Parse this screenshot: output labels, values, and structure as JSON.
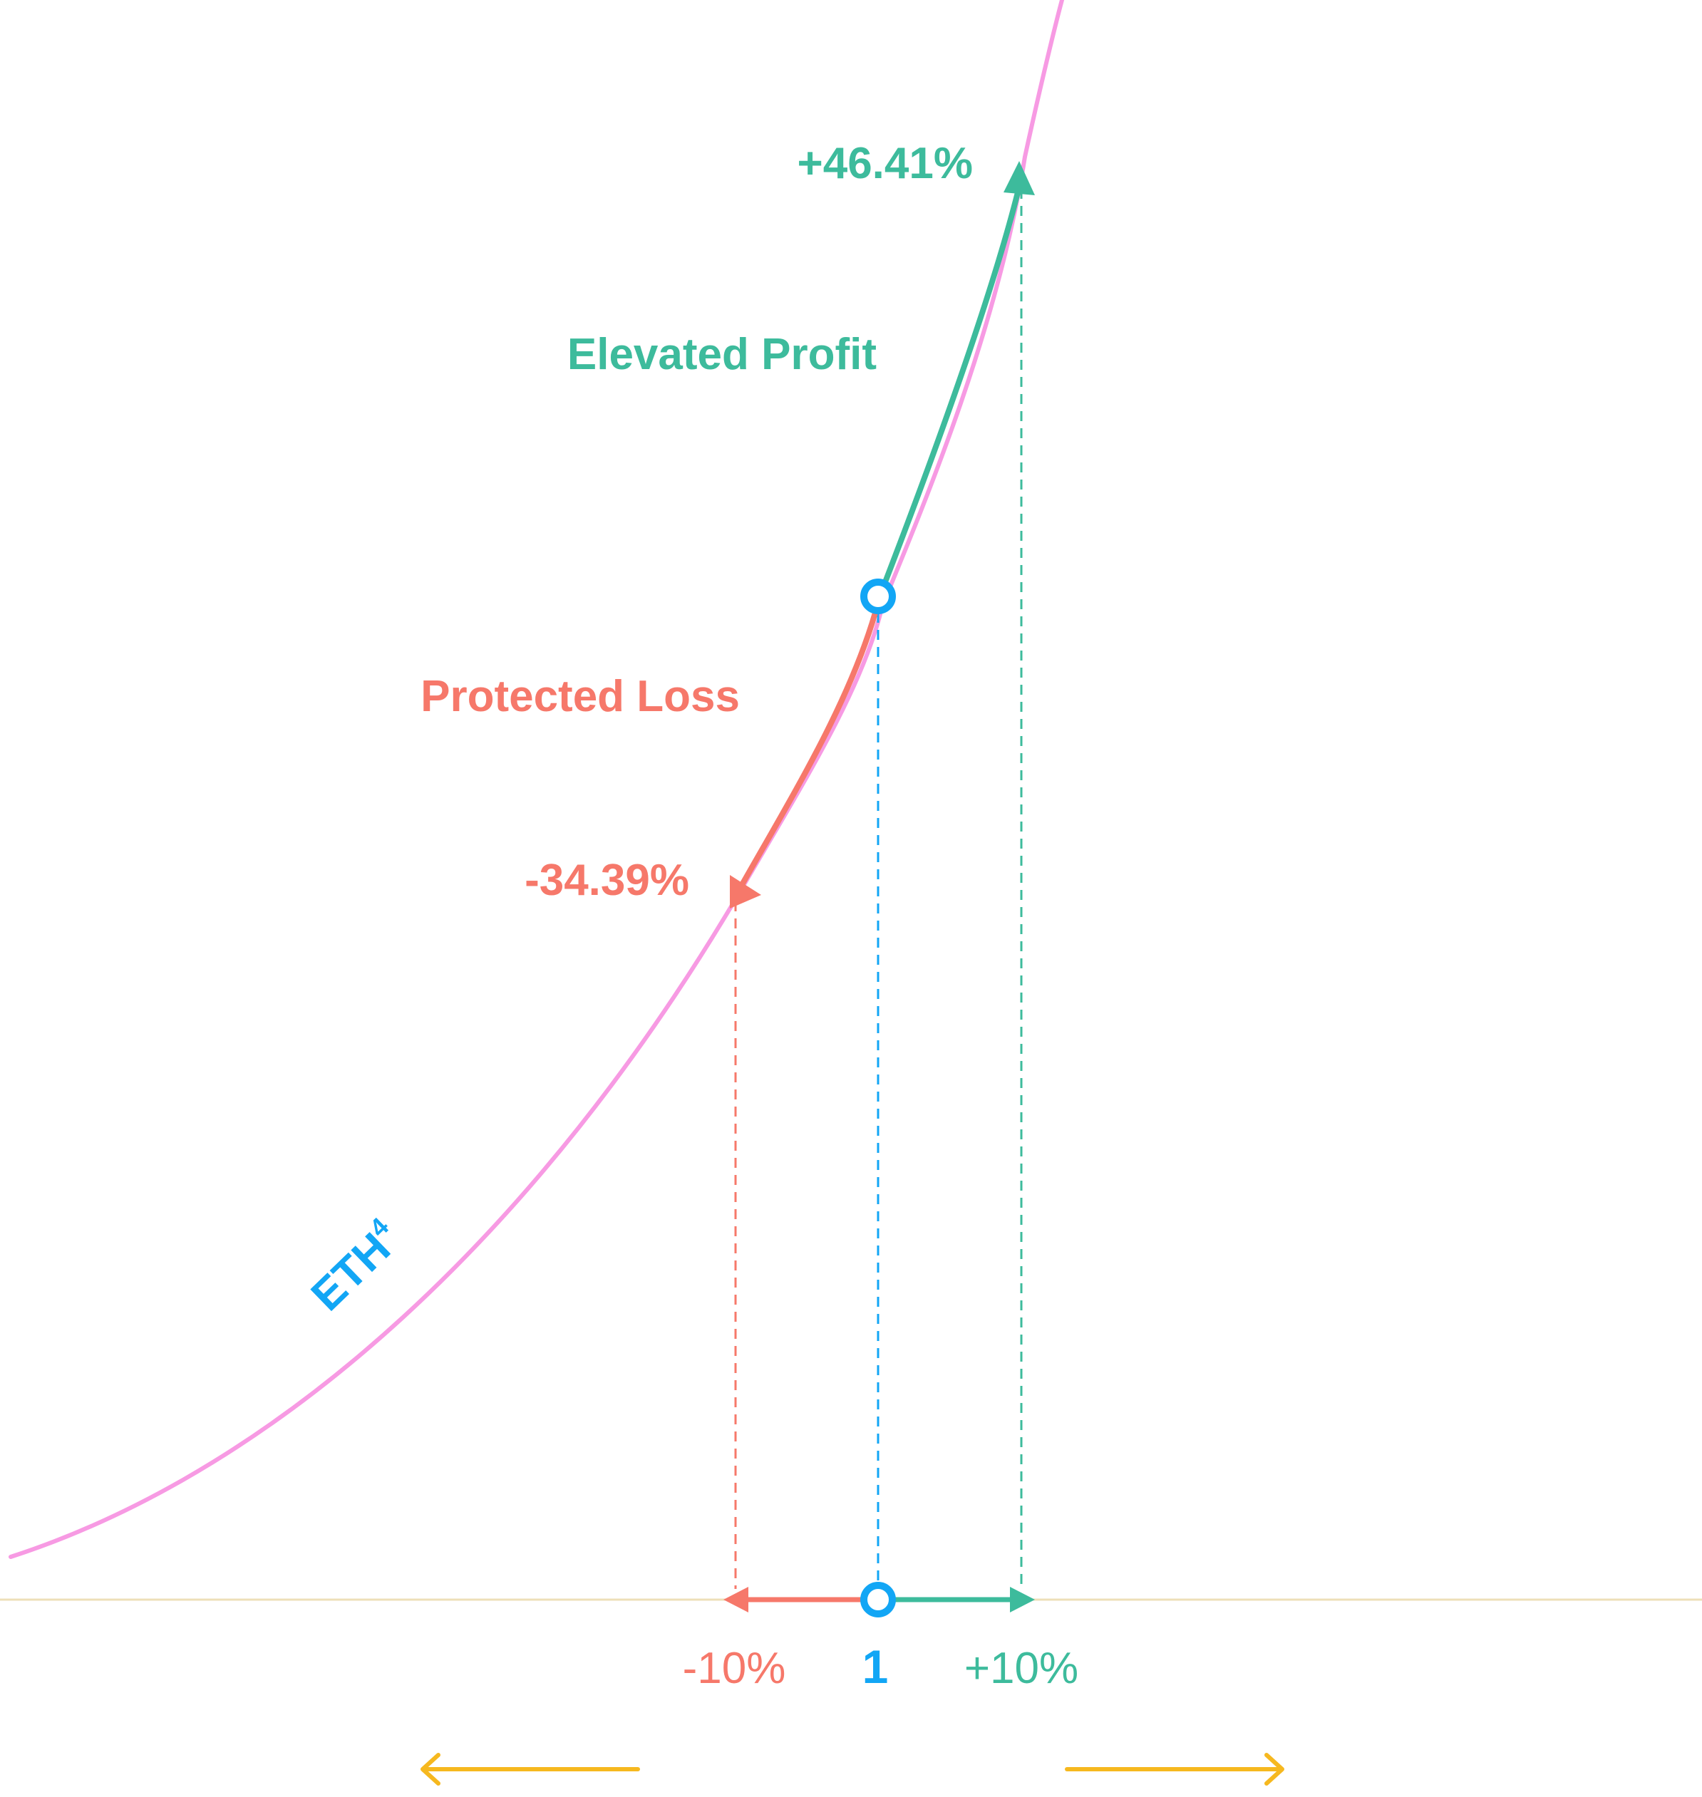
{
  "labels": {
    "profit_pct": "+46.41%",
    "profit_title": "Elevated Profit",
    "loss_title": "Protected Loss",
    "loss_pct": "-34.39%",
    "curve_label": "ETH",
    "curve_exponent": "4",
    "tick_minus": "-10%",
    "tick_base": "1",
    "tick_plus": "+10%"
  },
  "colors": {
    "curve": "#f79ae3",
    "profit": "#3dbb9c",
    "loss": "#f6786a",
    "base": "#12a6f5",
    "axis": "#eedfb8",
    "direction_arrows": "#f6b81f"
  },
  "chart_data": {
    "type": "line",
    "function": "y = x^4",
    "base_point": {
      "x": 1.0,
      "y": 1.0
    },
    "points": [
      {
        "label": "-10%",
        "x": 0.9,
        "y": 0.6561,
        "change": "-34.39%"
      },
      {
        "label": "1",
        "x": 1.0,
        "y": 1.0,
        "change": "0%"
      },
      {
        "label": "+10%",
        "x": 1.1,
        "y": 1.4641,
        "change": "+46.41%"
      }
    ]
  }
}
